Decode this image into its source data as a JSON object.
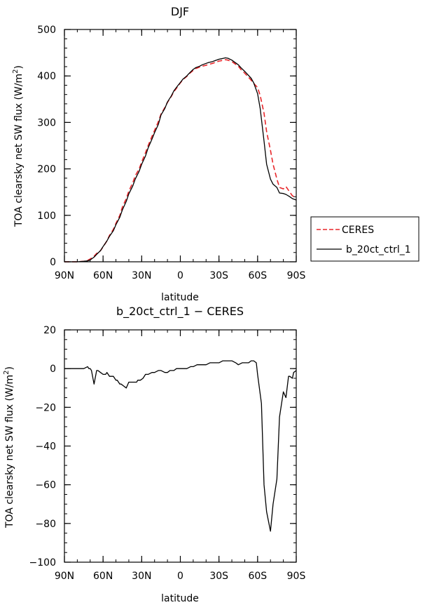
{
  "chart_data": [
    {
      "type": "line",
      "title": "DJF",
      "xlabel": "latitude",
      "ylabel": "TOA clearsky net SW flux (W/m²)",
      "ylabel_main": "TOA clearsky net SW flux (W/m",
      "ylabel_sup": "2",
      "ylabel_close": ")",
      "xlim": [
        90,
        -90
      ],
      "ylim": [
        0,
        500
      ],
      "x_ticks": [
        90,
        60,
        30,
        0,
        -30,
        -60,
        -90
      ],
      "x_tick_labels": [
        "90N",
        "60N",
        "30N",
        "0",
        "30S",
        "60S",
        "90S"
      ],
      "y_ticks": [
        0,
        100,
        200,
        300,
        400,
        500
      ],
      "y_tick_labels": [
        "0",
        "100",
        "200",
        "300",
        "400",
        "500"
      ],
      "legend_placement": "right",
      "series": [
        {
          "name": "CERES",
          "color": "#e8262a",
          "dash": "dashed",
          "x": [
            90,
            80,
            75,
            72,
            70,
            67,
            65,
            62,
            60,
            57,
            55,
            52,
            50,
            47,
            45,
            42,
            40,
            37,
            35,
            32,
            30,
            27,
            25,
            22,
            20,
            17,
            15,
            12,
            10,
            7,
            5,
            2,
            0,
            -2,
            -5,
            -7,
            -10,
            -12,
            -15,
            -17,
            -20,
            -22,
            -25,
            -27,
            -30,
            -32,
            -35,
            -37,
            -40,
            -42,
            -45,
            -47,
            -50,
            -52,
            -55,
            -57,
            -60,
            -62,
            -65,
            -67,
            -70,
            -72,
            -75,
            -77,
            -80,
            -82,
            -85,
            -87,
            -90
          ],
          "y": [
            0,
            0,
            1,
            3,
            6,
            12,
            18,
            24,
            32,
            45,
            57,
            70,
            83,
            100,
            118,
            136,
            152,
            170,
            185,
            200,
            215,
            235,
            250,
            270,
            283,
            302,
            318,
            332,
            343,
            356,
            366,
            377,
            385,
            392,
            399,
            405,
            412,
            416,
            419,
            421,
            423,
            425,
            427,
            429,
            432,
            433,
            435,
            434,
            431,
            427,
            421,
            414,
            406,
            400,
            391,
            384,
            375,
            358,
            320,
            280,
            240,
            210,
            178,
            160,
            157,
            162,
            150,
            142,
            138
          ]
        },
        {
          "name": "b_20ct_ctrl_1",
          "color": "#000000",
          "dash": "solid",
          "x": [
            90,
            80,
            75,
            72,
            70,
            67,
            65,
            62,
            60,
            57,
            55,
            52,
            50,
            47,
            45,
            42,
            40,
            37,
            35,
            32,
            30,
            27,
            25,
            22,
            20,
            17,
            15,
            12,
            10,
            7,
            5,
            2,
            0,
            -2,
            -5,
            -7,
            -10,
            -12,
            -15,
            -17,
            -20,
            -22,
            -25,
            -27,
            -30,
            -32,
            -35,
            -37,
            -40,
            -42,
            -45,
            -47,
            -50,
            -52,
            -55,
            -57,
            -60,
            -62,
            -65,
            -67,
            -70,
            -72,
            -75,
            -77,
            -80,
            -82,
            -85,
            -87,
            -90
          ],
          "y": [
            0,
            0,
            1,
            2,
            4,
            10,
            16,
            24,
            33,
            45,
            55,
            67,
            80,
            96,
            112,
            130,
            146,
            163,
            178,
            195,
            210,
            228,
            245,
            264,
            278,
            296,
            316,
            330,
            344,
            357,
            368,
            379,
            386,
            393,
            400,
            406,
            414,
            418,
            421,
            424,
            427,
            429,
            431,
            433,
            436,
            437,
            439,
            438,
            434,
            430,
            424,
            418,
            410,
            404,
            395,
            385,
            362,
            330,
            260,
            210,
            178,
            167,
            160,
            148,
            147,
            145,
            140,
            136,
            133
          ]
        }
      ]
    },
    {
      "type": "line",
      "title": "b_20ct_ctrl_1 − CERES",
      "xlabel": "latitude",
      "ylabel": "TOA clearsky net SW flux (W/m²)",
      "ylabel_main": "TOA clearsky net SW flux (W/m",
      "ylabel_sup": "2",
      "ylabel_close": ")",
      "xlim": [
        90,
        -90
      ],
      "ylim": [
        -100,
        20
      ],
      "x_ticks": [
        90,
        60,
        30,
        0,
        -30,
        -60,
        -90
      ],
      "x_tick_labels": [
        "90N",
        "60N",
        "30N",
        "0",
        "30S",
        "60S",
        "90S"
      ],
      "y_ticks": [
        20,
        0,
        -20,
        -40,
        -60,
        -80,
        -100
      ],
      "y_tick_labels": [
        "20",
        "0",
        "−20",
        "−40",
        "−60",
        "−80",
        "−100"
      ],
      "series": [
        {
          "color": "#000000",
          "dash": "solid",
          "x": [
            90,
            80,
            75,
            72,
            71,
            70,
            69,
            67,
            65,
            64,
            62,
            60,
            58,
            57,
            55,
            54,
            52,
            50,
            49,
            47,
            46,
            44,
            42,
            40,
            38,
            36,
            34,
            33,
            31,
            29,
            27,
            25,
            22,
            20,
            17,
            15,
            12,
            10,
            8,
            5,
            3,
            0,
            -3,
            -5,
            -8,
            -10,
            -13,
            -15,
            -18,
            -20,
            -23,
            -25,
            -28,
            -30,
            -33,
            -35,
            -38,
            -40,
            -43,
            -45,
            -48,
            -50,
            -53,
            -55,
            -57,
            -59,
            -60,
            -63,
            -65,
            -67,
            -70,
            -72,
            -75,
            -77,
            -80,
            -82,
            -84,
            -85,
            -87,
            -88,
            -90
          ],
          "y": [
            0,
            0,
            0,
            1,
            0,
            0,
            -1,
            -8,
            -1,
            -1,
            -2,
            -3,
            -3,
            -2,
            -4,
            -4,
            -4,
            -6,
            -6,
            -8,
            -8,
            -9,
            -10,
            -7,
            -7,
            -7,
            -7,
            -6,
            -6,
            -5,
            -3,
            -3,
            -2,
            -2,
            -1,
            -1,
            -2,
            -2,
            -1,
            -1,
            0,
            0,
            0,
            0,
            1,
            1,
            2,
            2,
            2,
            2,
            3,
            3,
            3,
            3,
            4,
            4,
            4,
            4,
            3,
            2,
            3,
            3,
            3,
            4,
            4,
            3,
            -3,
            -18,
            -60,
            -74,
            -84,
            -70,
            -57,
            -25,
            -12,
            -15,
            -4,
            -4,
            -5,
            -2,
            -1
          ]
        }
      ]
    }
  ]
}
